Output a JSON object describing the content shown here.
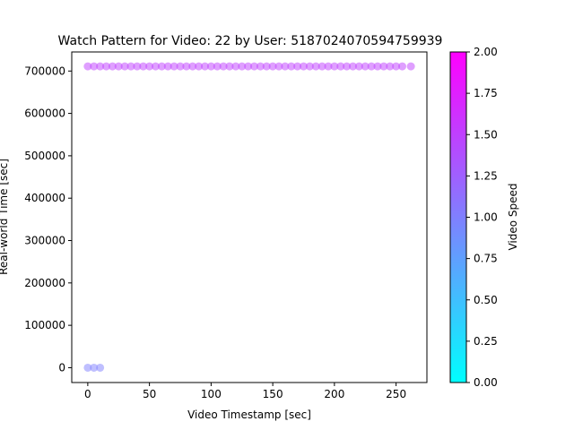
{
  "chart_data": {
    "type": "scatter",
    "title": "Watch Pattern for Video: 22 by User: 5187024070594759939",
    "xlabel": "Video Timestamp [sec]",
    "ylabel": "Real-world Time [sec]",
    "xlim": [
      -13,
      275
    ],
    "ylim": [
      -35000,
      745000
    ],
    "xticks": [
      0,
      50,
      100,
      150,
      200,
      250
    ],
    "yticks": [
      0,
      100000,
      200000,
      300000,
      400000,
      500000,
      600000,
      700000
    ],
    "grid": false,
    "colormap": "cool",
    "colorbar": {
      "label": "Video Speed",
      "range": [
        0,
        2
      ],
      "ticks": [
        "0.00",
        "0.25",
        "0.50",
        "0.75",
        "1.00",
        "1.25",
        "1.50",
        "1.75",
        "2.00"
      ]
    },
    "marker_alpha": 0.5,
    "series": [
      {
        "speed": 1.0,
        "points": [
          [
            0,
            0
          ],
          [
            5,
            0
          ],
          [
            10,
            0
          ]
        ]
      },
      {
        "speed": 1.5,
        "points": [
          [
            0,
            711000
          ],
          [
            5,
            711000
          ],
          [
            10,
            711000
          ],
          [
            15,
            711000
          ],
          [
            20,
            711000
          ],
          [
            25,
            711000
          ],
          [
            30,
            711000
          ],
          [
            35,
            711000
          ],
          [
            40,
            711000
          ],
          [
            45,
            711000
          ],
          [
            50,
            711000
          ],
          [
            55,
            711000
          ],
          [
            60,
            711000
          ],
          [
            65,
            711000
          ],
          [
            70,
            711000
          ],
          [
            75,
            711000
          ],
          [
            80,
            711000
          ],
          [
            85,
            711000
          ],
          [
            90,
            711000
          ],
          [
            95,
            711000
          ],
          [
            100,
            711000
          ],
          [
            105,
            711000
          ],
          [
            110,
            711000
          ],
          [
            115,
            711000
          ],
          [
            120,
            711000
          ],
          [
            125,
            711000
          ],
          [
            130,
            711000
          ],
          [
            135,
            711000
          ],
          [
            140,
            711000
          ],
          [
            145,
            711000
          ],
          [
            150,
            711000
          ],
          [
            155,
            711000
          ],
          [
            160,
            711000
          ],
          [
            165,
            711000
          ],
          [
            170,
            711000
          ],
          [
            175,
            711000
          ],
          [
            180,
            711000
          ],
          [
            185,
            711000
          ],
          [
            190,
            711000
          ],
          [
            195,
            711000
          ],
          [
            200,
            711000
          ],
          [
            205,
            711000
          ],
          [
            210,
            711000
          ],
          [
            215,
            711000
          ],
          [
            220,
            711000
          ],
          [
            225,
            711000
          ],
          [
            230,
            711000
          ],
          [
            235,
            711000
          ],
          [
            240,
            711000
          ],
          [
            245,
            711000
          ],
          [
            250,
            711000
          ],
          [
            255,
            711000
          ],
          [
            262,
            711000
          ]
        ]
      }
    ]
  }
}
